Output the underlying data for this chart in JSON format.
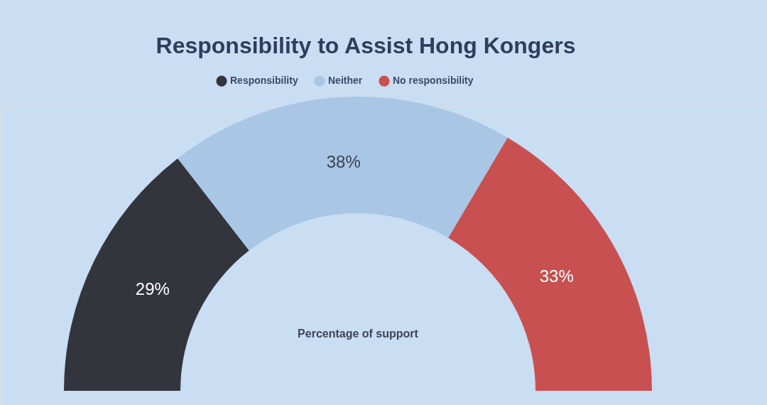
{
  "chart_data": {
    "type": "donut",
    "title": "Responsibility to Assist Hong Kongers",
    "categories": [
      "Responsibility",
      "Neither",
      "No responsibility"
    ],
    "values": [
      29,
      38,
      33
    ],
    "colors": [
      "#33353d",
      "#a9c6e5",
      "#c85050"
    ],
    "value_labels": [
      "29%",
      "38%",
      "33%"
    ],
    "legend": "top",
    "annotations": [
      "Percentage of support"
    ]
  }
}
